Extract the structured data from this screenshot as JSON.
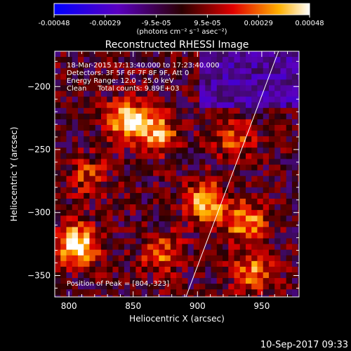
{
  "chart_data": {
    "type": "heatmap",
    "title": "Reconstructed RHESSI Image",
    "xlabel": "Heliocentric X (arcsec)",
    "ylabel": "Heliocentric Y (arcsec)",
    "xlim": [
      789,
      979
    ],
    "ylim": [
      -367,
      -172
    ],
    "xticks": [
      800,
      850,
      900,
      950
    ],
    "yticks": [
      -200,
      -250,
      -300,
      -350
    ],
    "colorbar": {
      "ticks": [
        "-0.00048",
        "-0.00029",
        "-9.5e-05",
        "9.5e-05",
        "0.00029",
        "0.00048"
      ],
      "min": -0.00048,
      "max": 0.00048,
      "unit_label": "(photons cm⁻² s⁻¹ asec⁻²)"
    },
    "annotations": {
      "time_range": "18-Mar-2015 17:13:40.000 to 17:23:40.000",
      "detectors": "Detectors: 3F 5F 6F 7F 8F 9F, Att 0",
      "energy_range": "Energy Range: 12.0 - 25.0 keV",
      "clean": "Clean     Total counts: 9.89E+03",
      "peak": "Position of Peak = [804,-323]"
    },
    "sources": [
      {
        "x": 804,
        "y": -323,
        "peak": 0.00048
      },
      {
        "x": 843,
        "y": -224,
        "peak": 0.0004
      },
      {
        "x": 866,
        "y": -235,
        "peak": 0.00034
      },
      {
        "x": 905,
        "y": -290,
        "peak": 0.00038
      },
      {
        "x": 935,
        "y": -305,
        "peak": 0.00032
      },
      {
        "x": 870,
        "y": -330,
        "peak": 0.00026
      },
      {
        "x": 940,
        "y": -345,
        "peak": 0.00028
      },
      {
        "x": 927,
        "y": -238,
        "peak": 0.00024
      },
      {
        "x": 812,
        "y": -268,
        "peak": 0.0002
      }
    ],
    "limb_line": [
      [
        891,
        -367
      ],
      [
        963,
        -172
      ]
    ],
    "timestamp": "10-Sep-2017 09:33"
  }
}
